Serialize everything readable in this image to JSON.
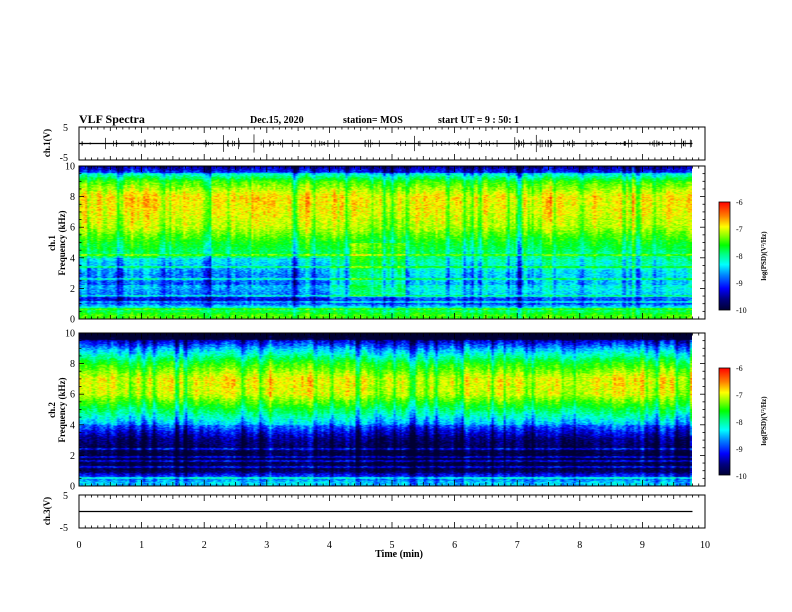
{
  "header": {
    "title": "VLF Spectra",
    "date": "Dec.15, 2020",
    "station": "station= MOS",
    "start": "start  UT =   9 : 50: 1"
  },
  "colors": {
    "spectrum_ramp": [
      "#000033",
      "#00007f",
      "#0000ff",
      "#0080ff",
      "#00ffff",
      "#00ff80",
      "#00ff00",
      "#80ff00",
      "#ffff00",
      "#ff8000",
      "#ff0000"
    ]
  },
  "chart_data": [
    {
      "type": "line",
      "panel": "ch1-waveform",
      "ylabel": "ch.1(V)",
      "ylim": [
        -5,
        5
      ],
      "y_tick_labels": [
        "5",
        "-5"
      ],
      "series": [
        {
          "x": [
            0,
            9.8
          ],
          "y": [
            0,
            0
          ]
        }
      ]
    },
    {
      "type": "heatmap",
      "panel": "ch1-spectrogram",
      "ylabel": "ch.1\nFrequency (kHz)",
      "ylim": [
        0,
        10
      ],
      "y_ticks": [
        "0",
        "2",
        "4",
        "6",
        "8",
        "10"
      ],
      "xlim": [
        0,
        10
      ],
      "x_data_max": 9.8,
      "colorbar": {
        "label": "log(PSD)(V²/Hz)",
        "range": [
          -10,
          -6
        ],
        "ticks": [
          "-6",
          "-7",
          "-8",
          "-9",
          "-10"
        ]
      },
      "band_profile_kHz": [
        {
          "f": 0.2,
          "logpsd": -7.4
        },
        {
          "f": 0.6,
          "logpsd": -8.0
        },
        {
          "f": 1.0,
          "logpsd": -9.0
        },
        {
          "f": 2.0,
          "logpsd": -8.6
        },
        {
          "f": 3.0,
          "logpsd": -8.4
        },
        {
          "f": 4.0,
          "logpsd": -8.0
        },
        {
          "f": 5.0,
          "logpsd": -7.6
        },
        {
          "f": 6.0,
          "logpsd": -7.0
        },
        {
          "f": 7.0,
          "logpsd": -6.8
        },
        {
          "f": 8.0,
          "logpsd": -6.7
        },
        {
          "f": 9.0,
          "logpsd": -7.4
        },
        {
          "f": 9.5,
          "logpsd": -8.3
        },
        {
          "f": 10.0,
          "logpsd": -8.9
        }
      ]
    },
    {
      "type": "heatmap",
      "panel": "ch2-spectrogram",
      "ylabel": "ch.2\nFrequency (kHz)",
      "ylim": [
        0,
        10
      ],
      "y_ticks": [
        "0",
        "2",
        "4",
        "6",
        "8",
        "10"
      ],
      "xlim": [
        0,
        10
      ],
      "x_data_max": 9.8,
      "colorbar": {
        "label": "log(PSD)(V²/Hz)",
        "range": [
          -10,
          -6
        ],
        "ticks": [
          "-6",
          "-7",
          "-8",
          "-9",
          "-10"
        ]
      },
      "band_profile_kHz": [
        {
          "f": 0.2,
          "logpsd": -8.5
        },
        {
          "f": 1.0,
          "logpsd": -9.6
        },
        {
          "f": 2.0,
          "logpsd": -9.7
        },
        {
          "f": 3.0,
          "logpsd": -9.4
        },
        {
          "f": 4.0,
          "logpsd": -8.6
        },
        {
          "f": 5.0,
          "logpsd": -7.8
        },
        {
          "f": 6.0,
          "logpsd": -6.9
        },
        {
          "f": 7.0,
          "logpsd": -6.8
        },
        {
          "f": 8.0,
          "logpsd": -7.5
        },
        {
          "f": 9.0,
          "logpsd": -8.6
        },
        {
          "f": 10.0,
          "logpsd": -9.9
        }
      ]
    },
    {
      "type": "line",
      "panel": "ch3-waveform",
      "ylabel": "ch.3(V)",
      "ylim": [
        -5,
        5
      ],
      "y_tick_labels": [
        "5",
        "-5"
      ],
      "series": [
        {
          "x": [
            0,
            9.8
          ],
          "y": [
            0,
            0
          ]
        }
      ]
    }
  ],
  "x_axis": {
    "label": "Time (min)",
    "ticks": [
      "0",
      "1",
      "2",
      "3",
      "4",
      "5",
      "6",
      "7",
      "8",
      "9",
      "10"
    ]
  }
}
